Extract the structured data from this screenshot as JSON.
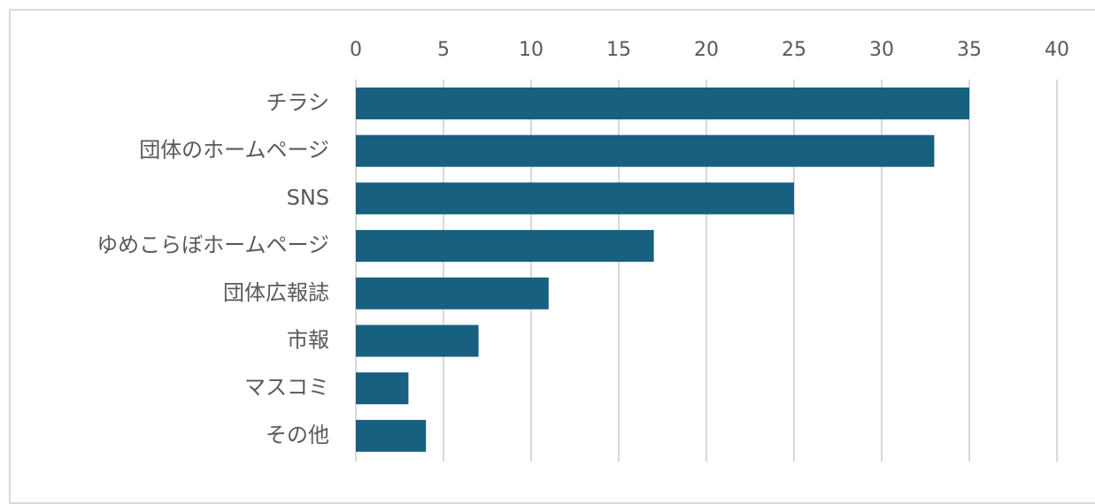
{
  "chart_data": {
    "type": "bar",
    "orientation": "horizontal",
    "title": "",
    "xlabel": "",
    "ylabel": "",
    "categories": [
      "チラシ",
      "団体のホームページ",
      "SNS",
      "ゆめこらぼホームページ",
      "団体広報誌",
      "市報",
      "マスコミ",
      "その他"
    ],
    "values": [
      35,
      33,
      25,
      17,
      11,
      7,
      3,
      4
    ],
    "xlim": [
      0,
      40
    ],
    "xticks": [
      0,
      5,
      10,
      15,
      20,
      25,
      30,
      35,
      40
    ],
    "grid": true,
    "axis_position": "top",
    "bar_color": "#17607f"
  }
}
